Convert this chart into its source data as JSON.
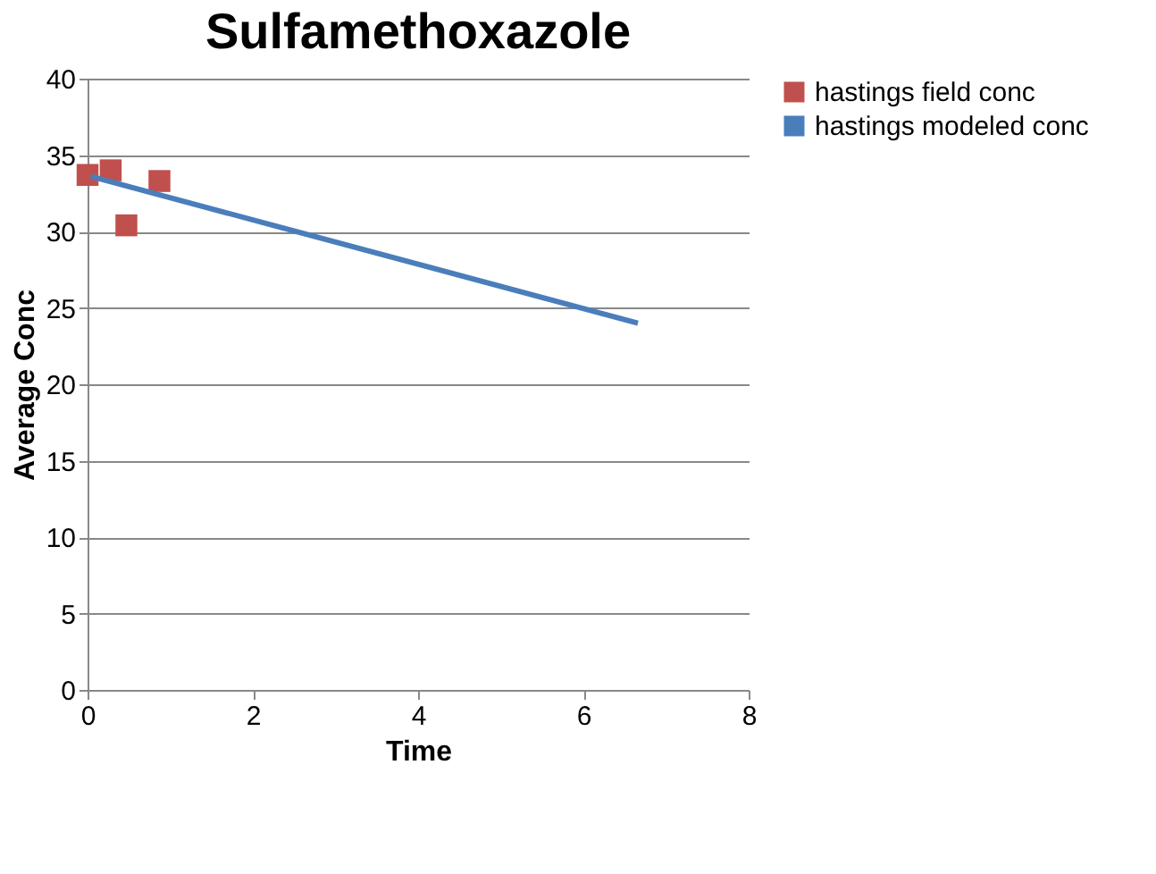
{
  "chart_data": {
    "type": "scatter",
    "title": "Sulfamethoxazole",
    "xlabel": "Time",
    "ylabel": "Average Conc",
    "series": [
      {
        "name": "hastings field conc",
        "marker": "square",
        "color": "#c0504d",
        "x": [
          0,
          0.28,
          0.47,
          0.87
        ],
        "values": [
          33.7,
          34.0,
          30.4,
          33.3
        ]
      },
      {
        "name": "hastings modeled conc",
        "type": "line",
        "marker": "none",
        "color": "#4a7ebb",
        "x": [
          0.04,
          6.66
        ],
        "values": [
          33.6,
          24.0
        ]
      }
    ],
    "xlim": [
      0,
      8
    ],
    "xticks": [
      0,
      2,
      4,
      6,
      8
    ],
    "ylim": [
      0,
      40
    ],
    "yticks": [
      0,
      5,
      10,
      15,
      20,
      25,
      30,
      35,
      40
    ],
    "grid": "y",
    "legend": "right"
  }
}
